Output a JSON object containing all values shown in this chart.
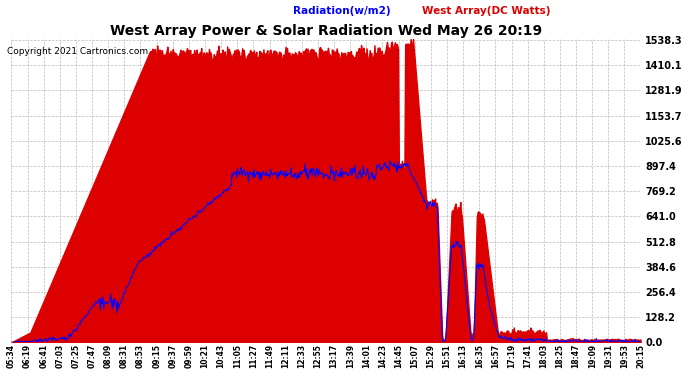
{
  "title": "West Array Power & Solar Radiation Wed May 26 20:19",
  "copyright": "Copyright 2021 Cartronics.com",
  "legend_radiation": "Radiation(w/m2)",
  "legend_west": "West Array(DC Watts)",
  "y_ticks": [
    0.0,
    128.2,
    256.4,
    384.6,
    512.8,
    641.0,
    769.2,
    897.4,
    1025.6,
    1153.7,
    1281.9,
    1410.1,
    1538.3
  ],
  "y_max": 1538.3,
  "y_min": 0.0,
  "background_color": "#ffffff",
  "grid_color": "#bbbbbb",
  "red_fill_color": "#dd0000",
  "blue_line_color": "#0000ff",
  "title_color": "#000000",
  "copyright_color": "#000000",
  "x_labels": [
    "05:34",
    "06:19",
    "06:41",
    "07:03",
    "07:25",
    "07:47",
    "08:09",
    "08:31",
    "08:53",
    "09:15",
    "09:37",
    "09:59",
    "10:21",
    "10:43",
    "11:05",
    "11:27",
    "11:49",
    "12:11",
    "12:33",
    "12:55",
    "13:17",
    "13:39",
    "14:01",
    "14:23",
    "14:45",
    "15:07",
    "15:29",
    "15:51",
    "16:13",
    "16:35",
    "16:57",
    "17:19",
    "17:41",
    "18:03",
    "18:25",
    "18:47",
    "19:09",
    "19:31",
    "19:53",
    "20:15"
  ],
  "n_labels": 40
}
